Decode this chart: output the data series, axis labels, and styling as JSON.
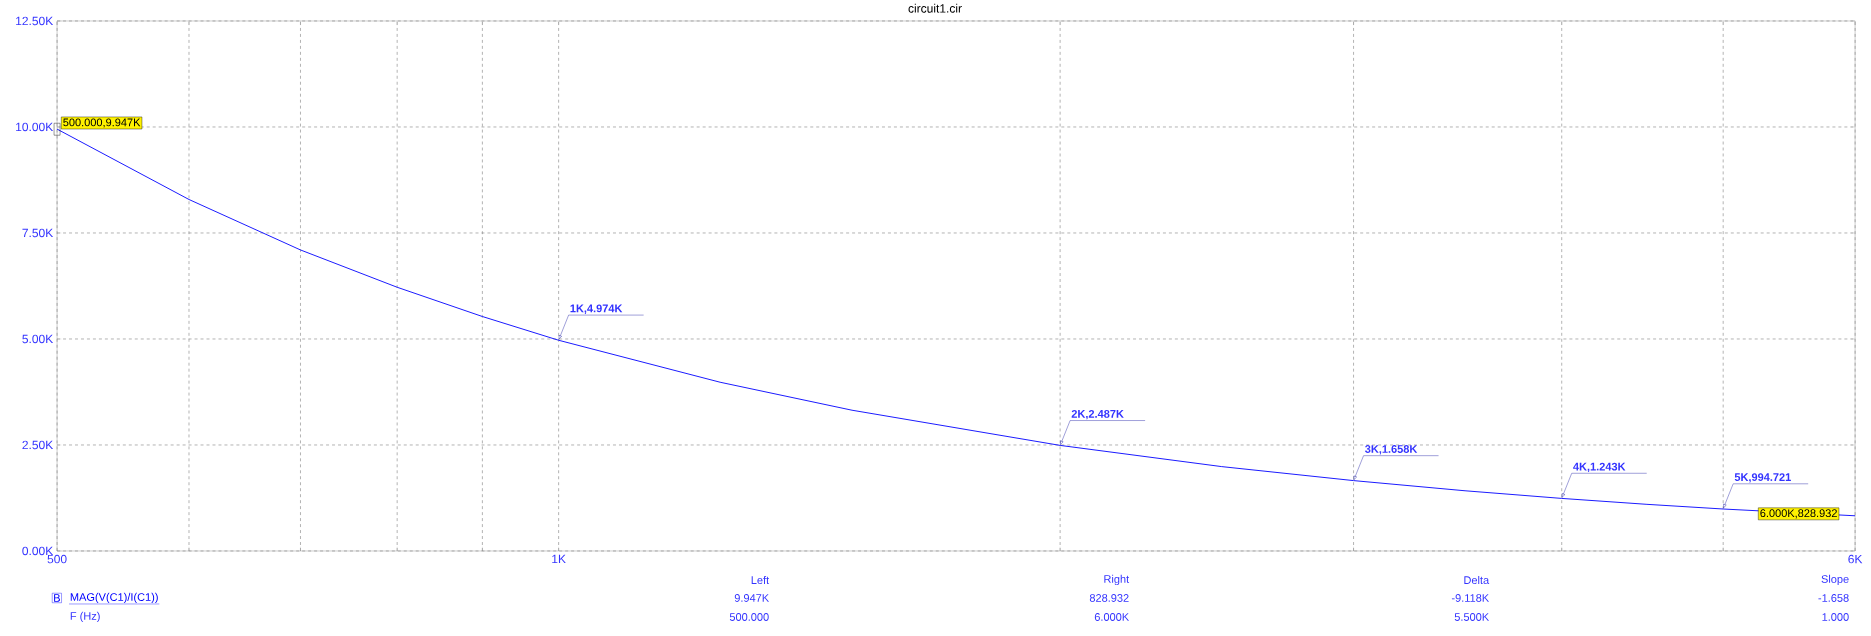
{
  "chart_data": {
    "type": "line",
    "title": "circuit1.cir",
    "xlabel": "F (Hz)",
    "x": [
      500,
      600,
      700,
      800,
      900,
      1000,
      1250,
      1500,
      2000,
      2500,
      3000,
      3500,
      4000,
      4500,
      5000,
      6000
    ],
    "series": [
      {
        "name": "MAG(V(C1)/I(C1))",
        "color": "#0000ff",
        "values": [
          9950,
          8290,
          7100,
          6220,
          5530,
          4970,
          3980,
          3320,
          2490,
          1990,
          1660,
          1420,
          1240,
          1100,
          990,
          830
        ]
      }
    ],
    "xlim": [
      500,
      6000
    ],
    "ylim": [
      0,
      12500
    ],
    "log": "x",
    "grid": true,
    "legend": "bottom left",
    "marker": "none",
    "line_style": "solid",
    "xticks": [
      {
        "value": 500,
        "label": "500"
      },
      {
        "value": 600,
        "label": null
      },
      {
        "value": 700,
        "label": null
      },
      {
        "value": 800,
        "label": null
      },
      {
        "value": 900,
        "label": null
      },
      {
        "value": 1000,
        "label": "1K"
      },
      {
        "value": 2000,
        "label": null
      },
      {
        "value": 3000,
        "label": null
      },
      {
        "value": 4000,
        "label": null
      },
      {
        "value": 5000,
        "label": null
      },
      {
        "value": 6000,
        "label": "6K"
      }
    ],
    "yticks": [
      {
        "value": 0,
        "label": "0.00K"
      },
      {
        "value": 2500,
        "label": "2.50K"
      },
      {
        "value": 5000,
        "label": "5.00K"
      },
      {
        "value": 7500,
        "label": "7.50K"
      },
      {
        "value": 10000,
        "label": "10.00K"
      },
      {
        "value": 12500,
        "label": "12.50K"
      }
    ],
    "annotations": [
      {
        "text": "500.000,9.947K",
        "x": 500,
        "y": 9947
      },
      {
        "text": "1K,4.974K",
        "x": 1000,
        "y": 4974
      },
      {
        "text": "2K,2.487K",
        "x": 2000,
        "y": 2487
      },
      {
        "text": "3K,1.658K",
        "x": 3000,
        "y": 1658
      },
      {
        "text": "4K,1.243K",
        "x": 4000,
        "y": 1243
      },
      {
        "text": "5K,994.721",
        "x": 5000,
        "y": 994.721
      },
      {
        "text": "6.000K,828.932",
        "x": 6000,
        "y": 828.932
      },
      "B",
      "Left",
      "9.947K",
      "500.000",
      "Right",
      "828.932",
      "6.000K",
      "Delta",
      "-9.118K",
      "5.500K",
      "Slope",
      "-1.658",
      "1.000"
    ]
  }
}
